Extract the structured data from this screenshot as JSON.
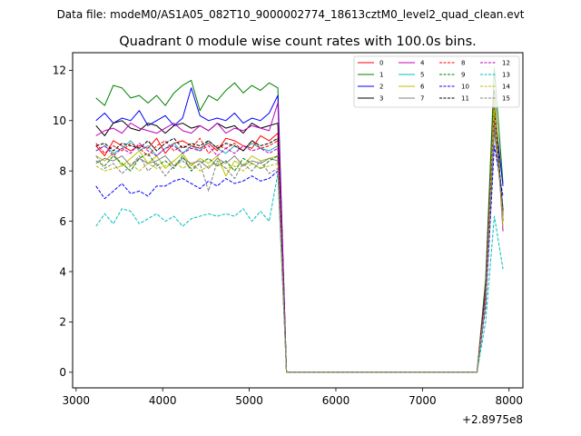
{
  "figure": {
    "suptitle": "Data file: modeM0/AS1A05_082T10_9000002774_18613cztM0_level2_quad_clean.evt",
    "offset_label": "+2.8975e8"
  },
  "chart_data": {
    "type": "line",
    "title": "Quadrant 0 module wise count rates with 100.0s bins.",
    "xlabel": "",
    "ylabel": "",
    "x_offset": 289750000,
    "xlim": [
      2960,
      8160
    ],
    "ylim": [
      -0.62,
      12.7
    ],
    "xticks": [
      3000,
      4000,
      5000,
      6000,
      7000,
      8000
    ],
    "yticks": [
      0,
      2,
      4,
      6,
      8,
      10,
      12
    ],
    "grid": false,
    "legend_position": "upper right",
    "x": [
      3230,
      3330,
      3430,
      3530,
      3630,
      3730,
      3830,
      3930,
      4030,
      4130,
      4230,
      4330,
      4430,
      4530,
      4630,
      4730,
      4830,
      4930,
      5030,
      5130,
      5230,
      5330,
      5430,
      5530,
      7630,
      7730,
      7830,
      7930
    ],
    "series": [
      {
        "name": "0",
        "color": "#ff0000",
        "dash": "solid",
        "values": [
          9.0,
          8.6,
          9.2,
          9.0,
          8.8,
          9.0,
          8.9,
          9.3,
          8.7,
          9.1,
          9.2,
          9.0,
          8.9,
          9.1,
          8.8,
          9.3,
          9.2,
          9.0,
          8.9,
          9.4,
          9.2,
          9.5,
          0.0,
          0.0,
          0.0,
          3.0,
          10.0,
          6.2
        ]
      },
      {
        "name": "1",
        "color": "#008000",
        "dash": "solid",
        "values": [
          10.9,
          10.6,
          11.4,
          11.3,
          10.9,
          11.0,
          10.7,
          11.0,
          10.6,
          11.1,
          11.4,
          11.6,
          10.4,
          11.0,
          10.8,
          11.2,
          11.5,
          11.1,
          11.4,
          11.2,
          11.5,
          11.3,
          0.0,
          0.0,
          0.0,
          3.7,
          12.1,
          7.5
        ]
      },
      {
        "name": "2",
        "color": "#0000ff",
        "dash": "solid",
        "values": [
          10.0,
          10.3,
          9.9,
          10.1,
          10.0,
          10.4,
          9.8,
          10.0,
          10.2,
          9.8,
          10.1,
          11.3,
          10.2,
          10.0,
          10.1,
          10.0,
          10.3,
          9.9,
          10.1,
          10.0,
          10.3,
          11.0,
          0.0,
          0.0,
          0.0,
          3.2,
          10.5,
          7.4
        ]
      },
      {
        "name": "3",
        "color": "#000000",
        "dash": "solid",
        "values": [
          9.8,
          9.4,
          9.9,
          10.0,
          9.7,
          9.6,
          9.9,
          9.8,
          9.5,
          9.8,
          9.9,
          9.7,
          9.8,
          9.6,
          9.9,
          9.7,
          9.8,
          9.5,
          9.9,
          9.7,
          9.8,
          9.9,
          0.0,
          0.0,
          0.0,
          3.3,
          11.2,
          6.0
        ]
      },
      {
        "name": "4",
        "color": "#c000c0",
        "dash": "solid",
        "values": [
          9.4,
          9.6,
          9.7,
          9.5,
          9.9,
          9.7,
          9.6,
          9.5,
          9.7,
          9.9,
          9.6,
          9.5,
          9.8,
          9.6,
          9.9,
          9.5,
          9.7,
          9.6,
          9.8,
          9.7,
          9.6,
          10.7,
          0.0,
          0.0,
          0.0,
          3.3,
          11.0,
          5.6
        ]
      },
      {
        "name": "5",
        "color": "#00bfbf",
        "dash": "solid",
        "values": [
          8.8,
          9.0,
          8.7,
          8.9,
          9.2,
          8.8,
          9.0,
          8.6,
          8.9,
          9.1,
          8.7,
          9.0,
          8.8,
          9.2,
          8.9,
          8.7,
          9.0,
          8.8,
          9.1,
          8.9,
          8.8,
          9.0,
          0.0,
          0.0,
          0.0,
          3.0,
          10.2,
          6.5
        ]
      },
      {
        "name": "6",
        "color": "#bfbf00",
        "dash": "solid",
        "values": [
          8.6,
          8.4,
          8.7,
          8.2,
          8.5,
          8.8,
          8.3,
          8.6,
          8.1,
          8.4,
          8.7,
          8.2,
          8.5,
          8.3,
          8.6,
          7.8,
          8.4,
          8.2,
          8.6,
          8.4,
          8.5,
          8.6,
          0.0,
          0.0,
          0.0,
          2.9,
          11.0,
          5.8
        ]
      },
      {
        "name": "7",
        "color": "#808080",
        "dash": "solid",
        "values": [
          8.3,
          8.5,
          8.4,
          8.6,
          8.2,
          8.5,
          8.3,
          8.4,
          8.6,
          8.2,
          8.5,
          8.3,
          8.4,
          8.1,
          8.5,
          8.3,
          8.6,
          8.2,
          8.4,
          8.3,
          8.5,
          8.4,
          0.0,
          0.0,
          0.0,
          2.8,
          9.6,
          6.4
        ]
      },
      {
        "name": "8",
        "color": "#ff0000",
        "dash": "dashed",
        "values": [
          9.1,
          8.7,
          9.0,
          8.8,
          9.1,
          8.9,
          8.6,
          9.0,
          9.2,
          8.8,
          9.0,
          8.9,
          9.3,
          8.7,
          9.0,
          8.9,
          9.1,
          8.8,
          9.2,
          8.9,
          9.0,
          9.2,
          0.0,
          0.0,
          0.0,
          3.1,
          10.2,
          6.3
        ]
      },
      {
        "name": "9",
        "color": "#008000",
        "dash": "dashed",
        "values": [
          8.4,
          8.2,
          8.6,
          8.3,
          8.0,
          8.5,
          8.7,
          8.2,
          8.4,
          8.1,
          8.6,
          8.0,
          8.3,
          8.5,
          8.2,
          8.4,
          8.0,
          8.5,
          8.3,
          8.1,
          8.4,
          8.6,
          0.0,
          0.0,
          0.0,
          2.9,
          9.8,
          6.5
        ]
      },
      {
        "name": "10",
        "color": "#0000ff",
        "dash": "dashed",
        "values": [
          7.4,
          6.9,
          7.2,
          7.5,
          7.1,
          7.2,
          7.0,
          7.4,
          7.4,
          7.6,
          7.7,
          7.5,
          7.3,
          7.6,
          7.4,
          7.7,
          7.5,
          7.6,
          7.8,
          7.6,
          7.7,
          8.0,
          0.0,
          0.0,
          0.0,
          2.6,
          9.0,
          7.0
        ]
      },
      {
        "name": "11",
        "color": "#000000",
        "dash": "dashed",
        "values": [
          9.0,
          9.1,
          8.8,
          9.1,
          9.0,
          8.9,
          9.2,
          8.8,
          9.1,
          9.3,
          8.9,
          9.1,
          9.0,
          9.2,
          8.9,
          9.1,
          9.0,
          8.8,
          9.2,
          9.0,
          9.1,
          9.3,
          0.0,
          0.0,
          0.0,
          3.1,
          10.4,
          6.4
        ]
      },
      {
        "name": "12",
        "color": "#c000c0",
        "dash": "dashed",
        "values": [
          8.8,
          9.0,
          8.6,
          8.9,
          8.7,
          9.1,
          8.8,
          8.6,
          8.9,
          9.0,
          8.7,
          8.9,
          8.8,
          9.0,
          8.6,
          8.9,
          8.7,
          9.0,
          8.8,
          8.9,
          8.7,
          8.9,
          0.0,
          0.0,
          0.0,
          3.0,
          10.0,
          6.2
        ]
      },
      {
        "name": "13",
        "color": "#00bfbf",
        "dash": "dashed",
        "values": [
          5.8,
          6.3,
          5.9,
          6.5,
          6.4,
          5.9,
          6.1,
          6.3,
          6.0,
          6.2,
          5.8,
          6.1,
          6.2,
          6.3,
          6.2,
          6.3,
          6.2,
          6.5,
          6.0,
          6.4,
          6.0,
          7.9,
          0.0,
          0.0,
          0.0,
          2.0,
          6.2,
          4.1
        ]
      },
      {
        "name": "14",
        "color": "#bfbf00",
        "dash": "dashed",
        "values": [
          8.2,
          8.0,
          8.1,
          8.2,
          8.3,
          8.0,
          8.3,
          8.1,
          8.2,
          8.4,
          8.1,
          8.3,
          8.0,
          8.2,
          8.3,
          8.1,
          8.2,
          8.0,
          8.3,
          8.1,
          8.2,
          8.3,
          0.0,
          0.0,
          0.0,
          2.9,
          10.4,
          6.0
        ]
      },
      {
        "name": "15",
        "color": "#808080",
        "dash": "dashed",
        "values": [
          8.6,
          8.1,
          8.3,
          7.9,
          8.2,
          8.6,
          8.0,
          8.3,
          7.8,
          8.2,
          8.4,
          8.1,
          8.3,
          7.2,
          8.4,
          8.1,
          7.7,
          8.3,
          8.0,
          8.4,
          7.9,
          8.1,
          0.0,
          0.0,
          0.0,
          2.7,
          9.8,
          6.2
        ]
      }
    ]
  }
}
